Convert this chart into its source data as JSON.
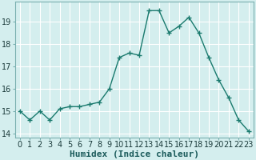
{
  "x": [
    0,
    1,
    2,
    3,
    4,
    5,
    6,
    7,
    8,
    9,
    10,
    11,
    12,
    13,
    14,
    15,
    16,
    17,
    18,
    19,
    20,
    21,
    22,
    23
  ],
  "y": [
    15.0,
    14.6,
    15.0,
    14.6,
    15.1,
    15.2,
    15.2,
    15.3,
    15.4,
    16.0,
    17.4,
    17.6,
    17.5,
    19.5,
    19.5,
    18.5,
    18.8,
    19.2,
    18.5,
    17.4,
    16.4,
    15.6,
    14.6,
    14.1
  ],
  "line_color": "#1a7a6e",
  "marker": "+",
  "marker_size": 4,
  "bg_color": "#d4eeee",
  "grid_color": "#ffffff",
  "grid_minor_color": "#e8f8f8",
  "xlabel": "Humidex (Indice chaleur)",
  "ylim": [
    13.8,
    19.9
  ],
  "xlim": [
    -0.5,
    23.5
  ],
  "yticks": [
    14,
    15,
    16,
    17,
    18,
    19
  ],
  "xticks": [
    0,
    1,
    2,
    3,
    4,
    5,
    6,
    7,
    8,
    9,
    10,
    11,
    12,
    13,
    14,
    15,
    16,
    17,
    18,
    19,
    20,
    21,
    22,
    23
  ],
  "xlabel_fontsize": 8,
  "tick_fontsize": 7,
  "line_width": 1.0,
  "marker_edge_width": 1.0
}
